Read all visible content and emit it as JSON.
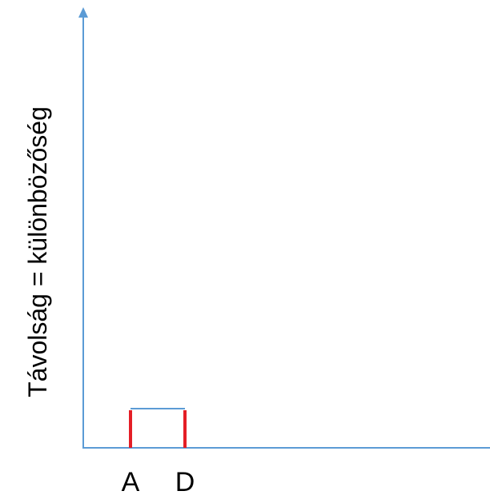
{
  "axis": {
    "y_label": "Távolság = különbözőség"
  },
  "leaves": [
    {
      "label": "A"
    },
    {
      "label": "D"
    }
  ]
}
